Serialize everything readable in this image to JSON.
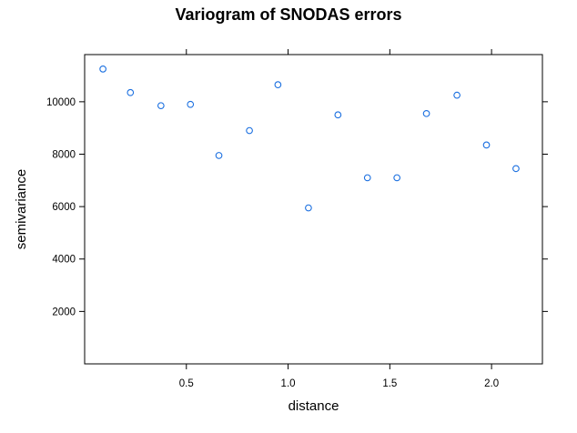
{
  "chart_data": {
    "type": "scatter",
    "title": "Variogram of SNODAS errors",
    "xlabel": "distance",
    "ylabel": "semivariance",
    "xlim": [
      0,
      2.25
    ],
    "ylim": [
      0,
      11800
    ],
    "x_ticks": [
      0.5,
      1.0,
      1.5,
      2.0
    ],
    "x_tick_labels": [
      "0.5",
      "1.0",
      "1.5",
      "2.0"
    ],
    "y_ticks": [
      2000,
      4000,
      6000,
      8000,
      10000
    ],
    "y_tick_labels": [
      "2000",
      "4000",
      "6000",
      "8000",
      "10000"
    ],
    "grid": false,
    "legend": "none",
    "point_color": "#1a6fe0",
    "series": [
      {
        "points": [
          {
            "x": 0.09,
            "y": 11250
          },
          {
            "x": 0.225,
            "y": 10350
          },
          {
            "x": 0.375,
            "y": 9850
          },
          {
            "x": 0.52,
            "y": 9900
          },
          {
            "x": 0.66,
            "y": 7950
          },
          {
            "x": 0.81,
            "y": 8900
          },
          {
            "x": 0.95,
            "y": 10650
          },
          {
            "x": 1.1,
            "y": 5950
          },
          {
            "x": 1.245,
            "y": 9500
          },
          {
            "x": 1.39,
            "y": 7100
          },
          {
            "x": 1.535,
            "y": 7100
          },
          {
            "x": 1.68,
            "y": 9550
          },
          {
            "x": 1.83,
            "y": 10250
          },
          {
            "x": 1.975,
            "y": 8350
          },
          {
            "x": 2.12,
            "y": 7450
          }
        ]
      }
    ]
  }
}
